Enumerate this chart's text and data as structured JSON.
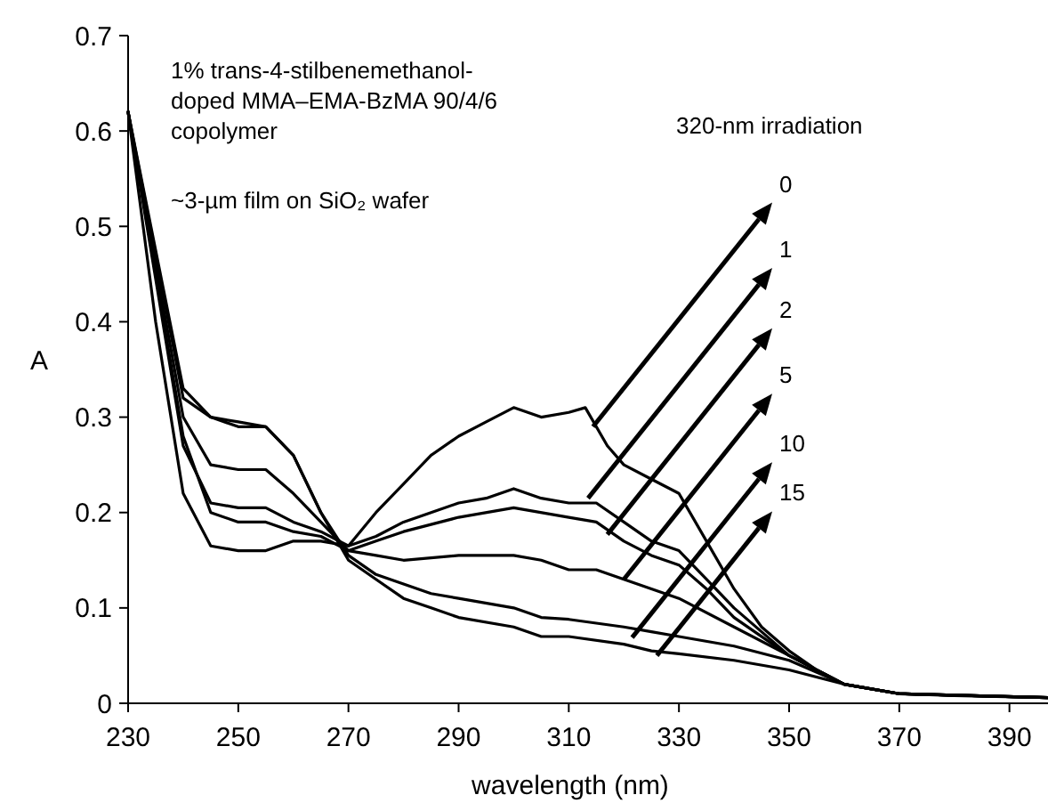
{
  "chart_data": {
    "type": "line",
    "xlabel": "wavelength (nm)",
    "ylabel": "A",
    "xlim": [
      230,
      397
    ],
    "ylim": [
      0,
      0.7
    ],
    "xticks": [
      230,
      250,
      270,
      290,
      310,
      330,
      350,
      370,
      390
    ],
    "yticks": [
      0,
      0.1,
      0.2,
      0.3,
      0.4,
      0.5,
      0.6,
      0.7
    ],
    "grid": false,
    "marker": "none",
    "line_style": "solid",
    "series": [
      {
        "color": "#000000",
        "x": [
          230,
          235,
          240,
          245,
          250,
          255,
          260,
          265,
          270,
          275,
          280,
          285,
          290,
          295,
          300,
          305,
          310,
          313,
          317,
          320,
          325,
          330,
          335,
          340,
          345,
          350,
          355,
          360,
          370,
          380,
          397
        ],
        "values": [
          0.62,
          0.4,
          0.22,
          0.165,
          0.16,
          0.16,
          0.17,
          0.17,
          0.165,
          0.2,
          0.23,
          0.26,
          0.28,
          0.295,
          0.31,
          0.3,
          0.305,
          0.31,
          0.27,
          0.25,
          0.235,
          0.22,
          0.17,
          0.12,
          0.08,
          0.055,
          0.035,
          0.02,
          0.01,
          0.008,
          0.006
        ]
      },
      {
        "color": "#000000",
        "x": [
          230,
          240,
          245,
          250,
          255,
          260,
          265,
          270,
          275,
          280,
          285,
          290,
          295,
          300,
          305,
          310,
          315,
          320,
          325,
          330,
          335,
          340,
          345,
          350,
          360,
          370,
          397
        ],
        "values": [
          0.62,
          0.27,
          0.21,
          0.205,
          0.205,
          0.19,
          0.18,
          0.165,
          0.175,
          0.19,
          0.2,
          0.21,
          0.215,
          0.225,
          0.215,
          0.21,
          0.21,
          0.19,
          0.17,
          0.16,
          0.13,
          0.1,
          0.075,
          0.05,
          0.02,
          0.01,
          0.006
        ]
      },
      {
        "color": "#000000",
        "x": [
          230,
          240,
          245,
          250,
          255,
          260,
          265,
          270,
          275,
          280,
          290,
          300,
          310,
          315,
          320,
          325,
          330,
          335,
          340,
          350,
          360,
          370,
          397
        ],
        "values": [
          0.62,
          0.28,
          0.2,
          0.19,
          0.19,
          0.18,
          0.175,
          0.16,
          0.17,
          0.18,
          0.195,
          0.205,
          0.195,
          0.19,
          0.17,
          0.155,
          0.145,
          0.12,
          0.09,
          0.05,
          0.02,
          0.01,
          0.006
        ]
      },
      {
        "color": "#000000",
        "x": [
          230,
          240,
          245,
          250,
          255,
          260,
          265,
          270,
          275,
          280,
          290,
          300,
          305,
          310,
          315,
          320,
          325,
          330,
          340,
          350,
          360,
          370,
          397
        ],
        "values": [
          0.62,
          0.3,
          0.25,
          0.245,
          0.245,
          0.22,
          0.19,
          0.16,
          0.155,
          0.15,
          0.155,
          0.155,
          0.15,
          0.14,
          0.14,
          0.13,
          0.12,
          0.11,
          0.08,
          0.05,
          0.02,
          0.01,
          0.006
        ]
      },
      {
        "color": "#000000",
        "x": [
          230,
          240,
          245,
          250,
          255,
          260,
          265,
          270,
          275,
          280,
          285,
          290,
          300,
          305,
          310,
          320,
          325,
          330,
          340,
          350,
          360,
          370,
          397
        ],
        "values": [
          0.62,
          0.32,
          0.3,
          0.29,
          0.29,
          0.26,
          0.2,
          0.155,
          0.135,
          0.125,
          0.115,
          0.11,
          0.1,
          0.09,
          0.088,
          0.08,
          0.075,
          0.07,
          0.06,
          0.045,
          0.02,
          0.01,
          0.006
        ]
      },
      {
        "color": "#000000",
        "x": [
          230,
          240,
          245,
          250,
          255,
          260,
          265,
          270,
          275,
          280,
          285,
          290,
          300,
          305,
          310,
          320,
          325,
          330,
          340,
          350,
          360,
          370,
          397
        ],
        "values": [
          0.62,
          0.33,
          0.3,
          0.295,
          0.29,
          0.26,
          0.2,
          0.15,
          0.13,
          0.11,
          0.1,
          0.09,
          0.08,
          0.07,
          0.07,
          0.062,
          0.055,
          0.052,
          0.045,
          0.035,
          0.02,
          0.01,
          0.006
        ]
      }
    ],
    "annotations": [
      "1% trans-4-stilbenemethanol-\ndoped MMA–EMA-BzMA 90/4/6\ncopolymer",
      "~3-µm film on SiO₂ wafer",
      "320-nm irradiation",
      {
        "text": "0",
        "x": 314.4,
        "y": 0.29
      },
      {
        "text": "1",
        "x": 313.5,
        "y": 0.215
      },
      {
        "text": "2",
        "x": 317,
        "y": 0.177
      },
      {
        "text": "5",
        "x": 320,
        "y": 0.13
      },
      {
        "text": "10",
        "x": 321.5,
        "y": 0.069
      },
      {
        "text": "15",
        "x": 326,
        "y": 0.05
      }
    ]
  }
}
